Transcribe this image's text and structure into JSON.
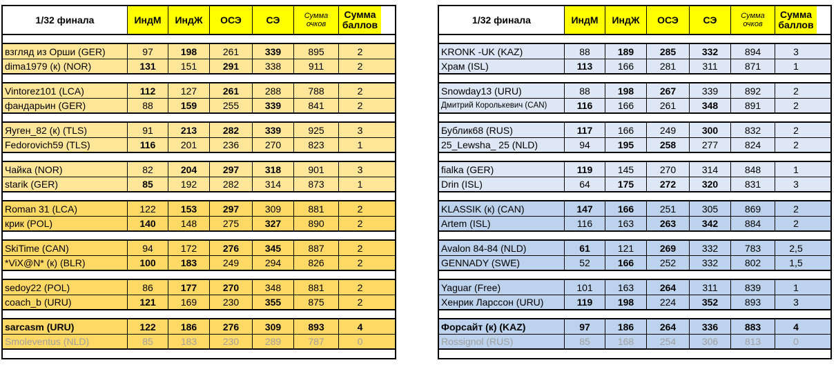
{
  "headers": {
    "stage": "1/32 финала",
    "cols": [
      "ИндМ",
      "ИндЖ",
      "ОСЭ",
      "СЭ"
    ],
    "sum_line1": "Сумма",
    "sum_line2": "очков",
    "pts_line1": "Сумма",
    "pts_line2": "баллов"
  },
  "left": {
    "pairs": [
      {
        "rows": [
          {
            "name": "взгляд из Орши (GER)",
            "v": [
              "97",
              "198",
              "261",
              "339",
              "895",
              "2"
            ],
            "bold": [
              false,
              true,
              false,
              true
            ]
          },
          {
            "name": "dima1979 (к) (NOR)",
            "v": [
              "131",
              "151",
              "291",
              "338",
              "911",
              "2"
            ],
            "bold": [
              true,
              false,
              true,
              false
            ]
          }
        ]
      },
      {
        "rows": [
          {
            "name": "Vintorez101 (LCA)",
            "v": [
              "112",
              "127",
              "261",
              "288",
              "788",
              "2"
            ],
            "bold": [
              true,
              false,
              true,
              false
            ]
          },
          {
            "name": "фандарьин (GER)",
            "v": [
              "88",
              "159",
              "255",
              "339",
              "841",
              "2"
            ],
            "bold": [
              false,
              true,
              false,
              true
            ]
          }
        ]
      },
      {
        "rows": [
          {
            "name": "Яуген_82 (к) (TLS)",
            "v": [
              "91",
              "213",
              "282",
              "339",
              "925",
              "3"
            ],
            "bold": [
              false,
              true,
              true,
              true
            ]
          },
          {
            "name": "Fedorovich59 (TLS)",
            "v": [
              "116",
              "201",
              "236",
              "270",
              "823",
              "1"
            ],
            "bold": [
              true,
              false,
              false,
              false
            ]
          }
        ]
      },
      {
        "rows": [
          {
            "name": "Чайка (NOR)",
            "v": [
              "82",
              "204",
              "297",
              "318",
              "901",
              "3"
            ],
            "bold": [
              false,
              true,
              true,
              true
            ]
          },
          {
            "name": "starik (GER)",
            "v": [
              "85",
              "192",
              "282",
              "314",
              "873",
              "1"
            ],
            "bold": [
              true,
              false,
              false,
              false
            ]
          }
        ]
      },
      {
        "rows": [
          {
            "name": "Roman 31 (LCA)",
            "v": [
              "122",
              "153",
              "297",
              "309",
              "881",
              "2"
            ],
            "bold": [
              false,
              true,
              true,
              false
            ]
          },
          {
            "name": "крик (POL)",
            "v": [
              "140",
              "148",
              "275",
              "327",
              "890",
              "2"
            ],
            "bold": [
              true,
              false,
              false,
              true
            ]
          }
        ]
      },
      {
        "rows": [
          {
            "name": "SkiTime (CAN)",
            "v": [
              "94",
              "172",
              "276",
              "345",
              "887",
              "2"
            ],
            "bold": [
              false,
              false,
              true,
              true
            ]
          },
          {
            "name": "*ViX@N* (к) (BLR)",
            "v": [
              "100",
              "183",
              "249",
              "294",
              "826",
              "2"
            ],
            "bold": [
              true,
              true,
              false,
              false
            ]
          }
        ]
      },
      {
        "rows": [
          {
            "name": "sedoy22 (POL)",
            "v": [
              "86",
              "177",
              "270",
              "348",
              "881",
              "2"
            ],
            "bold": [
              false,
              true,
              true,
              false
            ]
          },
          {
            "name": "coach_b (URU)",
            "v": [
              "121",
              "169",
              "230",
              "355",
              "875",
              "2"
            ],
            "bold": [
              true,
              false,
              false,
              true
            ]
          }
        ]
      },
      {
        "rows": [
          {
            "name": "sarcasm (URU)",
            "v": [
              "122",
              "186",
              "276",
              "309",
              "893",
              "4"
            ],
            "bold": [
              true,
              true,
              true,
              true
            ],
            "allbold": true
          },
          {
            "name": "Smoleventus (NLD)",
            "v": [
              "85",
              "183",
              "230",
              "289",
              "787",
              "0"
            ],
            "bold": [
              false,
              false,
              false,
              false
            ],
            "grey": true
          }
        ]
      }
    ]
  },
  "right": {
    "pairs": [
      {
        "rows": [
          {
            "name": "KRONK -UK (KAZ)",
            "v": [
              "88",
              "189",
              "285",
              "332",
              "894",
              "3"
            ],
            "bold": [
              false,
              true,
              true,
              true
            ]
          },
          {
            "name": "Храм (ISL)",
            "v": [
              "113",
              "166",
              "281",
              "311",
              "871",
              "1"
            ],
            "bold": [
              true,
              false,
              false,
              false
            ]
          }
        ]
      },
      {
        "rows": [
          {
            "name": "Snowday13 (URU)",
            "v": [
              "88",
              "198",
              "267",
              "339",
              "892",
              "2"
            ],
            "bold": [
              false,
              true,
              true,
              false
            ]
          },
          {
            "name": "Дмитрий Королькевич (CAN)",
            "v": [
              "116",
              "166",
              "261",
              "348",
              "891",
              "2"
            ],
            "bold": [
              true,
              false,
              false,
              true
            ],
            "small": true
          }
        ]
      },
      {
        "rows": [
          {
            "name": "Бублик68 (RUS)",
            "v": [
              "117",
              "166",
              "249",
              "300",
              "832",
              "2"
            ],
            "bold": [
              true,
              false,
              false,
              true
            ]
          },
          {
            "name": "25_Lewsha_ 25 (NLD)",
            "v": [
              "94",
              "195",
              "258",
              "277",
              "824",
              "2"
            ],
            "bold": [
              false,
              true,
              true,
              false
            ]
          }
        ]
      },
      {
        "rows": [
          {
            "name": "fialka (GER)",
            "v": [
              "119",
              "145",
              "270",
              "314",
              "848",
              "1"
            ],
            "bold": [
              true,
              false,
              false,
              false
            ]
          },
          {
            "name": "Drin (ISL)",
            "v": [
              "64",
              "175",
              "272",
              "320",
              "831",
              "3"
            ],
            "bold": [
              false,
              true,
              true,
              true
            ]
          }
        ]
      },
      {
        "rows": [
          {
            "name": "KLASSIK (к) (CAN)",
            "v": [
              "147",
              "166",
              "251",
              "305",
              "869",
              "2"
            ],
            "bold": [
              true,
              true,
              false,
              false
            ]
          },
          {
            "name": "Artem (ISL)",
            "v": [
              "116",
              "163",
              "263",
              "342",
              "884",
              "2"
            ],
            "bold": [
              false,
              false,
              true,
              true
            ]
          }
        ]
      },
      {
        "rows": [
          {
            "name": "Avalon 84-84 (NLD)",
            "v": [
              "61",
              "121",
              "269",
              "332",
              "783",
              "2,5"
            ],
            "bold": [
              true,
              false,
              true,
              false
            ]
          },
          {
            "name": "GENNADY (SWE)",
            "v": [
              "52",
              "166",
              "252",
              "332",
              "802",
              "1,5"
            ],
            "bold": [
              false,
              true,
              false,
              false
            ]
          }
        ]
      },
      {
        "rows": [
          {
            "name": "Yaguar (Free)",
            "v": [
              "101",
              "163",
              "264",
              "311",
              "839",
              "1"
            ],
            "bold": [
              false,
              false,
              true,
              false
            ]
          },
          {
            "name": "Хенрик Ларссон (URU)",
            "v": [
              "119",
              "198",
              "224",
              "352",
              "893",
              "3"
            ],
            "bold": [
              true,
              true,
              false,
              true
            ]
          }
        ]
      },
      {
        "rows": [
          {
            "name": "Форсайт (к) (KAZ)",
            "v": [
              "97",
              "186",
              "264",
              "336",
              "883",
              "4"
            ],
            "bold": [
              true,
              true,
              true,
              true
            ],
            "allbold": true
          },
          {
            "name": "Rossignol (RUS)",
            "v": [
              "85",
              "168",
              "254",
              "306",
              "813",
              "0"
            ],
            "bold": [
              false,
              false,
              false,
              false
            ],
            "grey": true
          }
        ]
      }
    ]
  },
  "colors": {
    "header_accent": "#ffff00",
    "left_row": "#ffe699",
    "left_row_dark": "#ffd966",
    "right_row": "#dde7f5",
    "right_row_dark": "#bdd2ec",
    "eliminated_text": "#a0a0a0"
  }
}
